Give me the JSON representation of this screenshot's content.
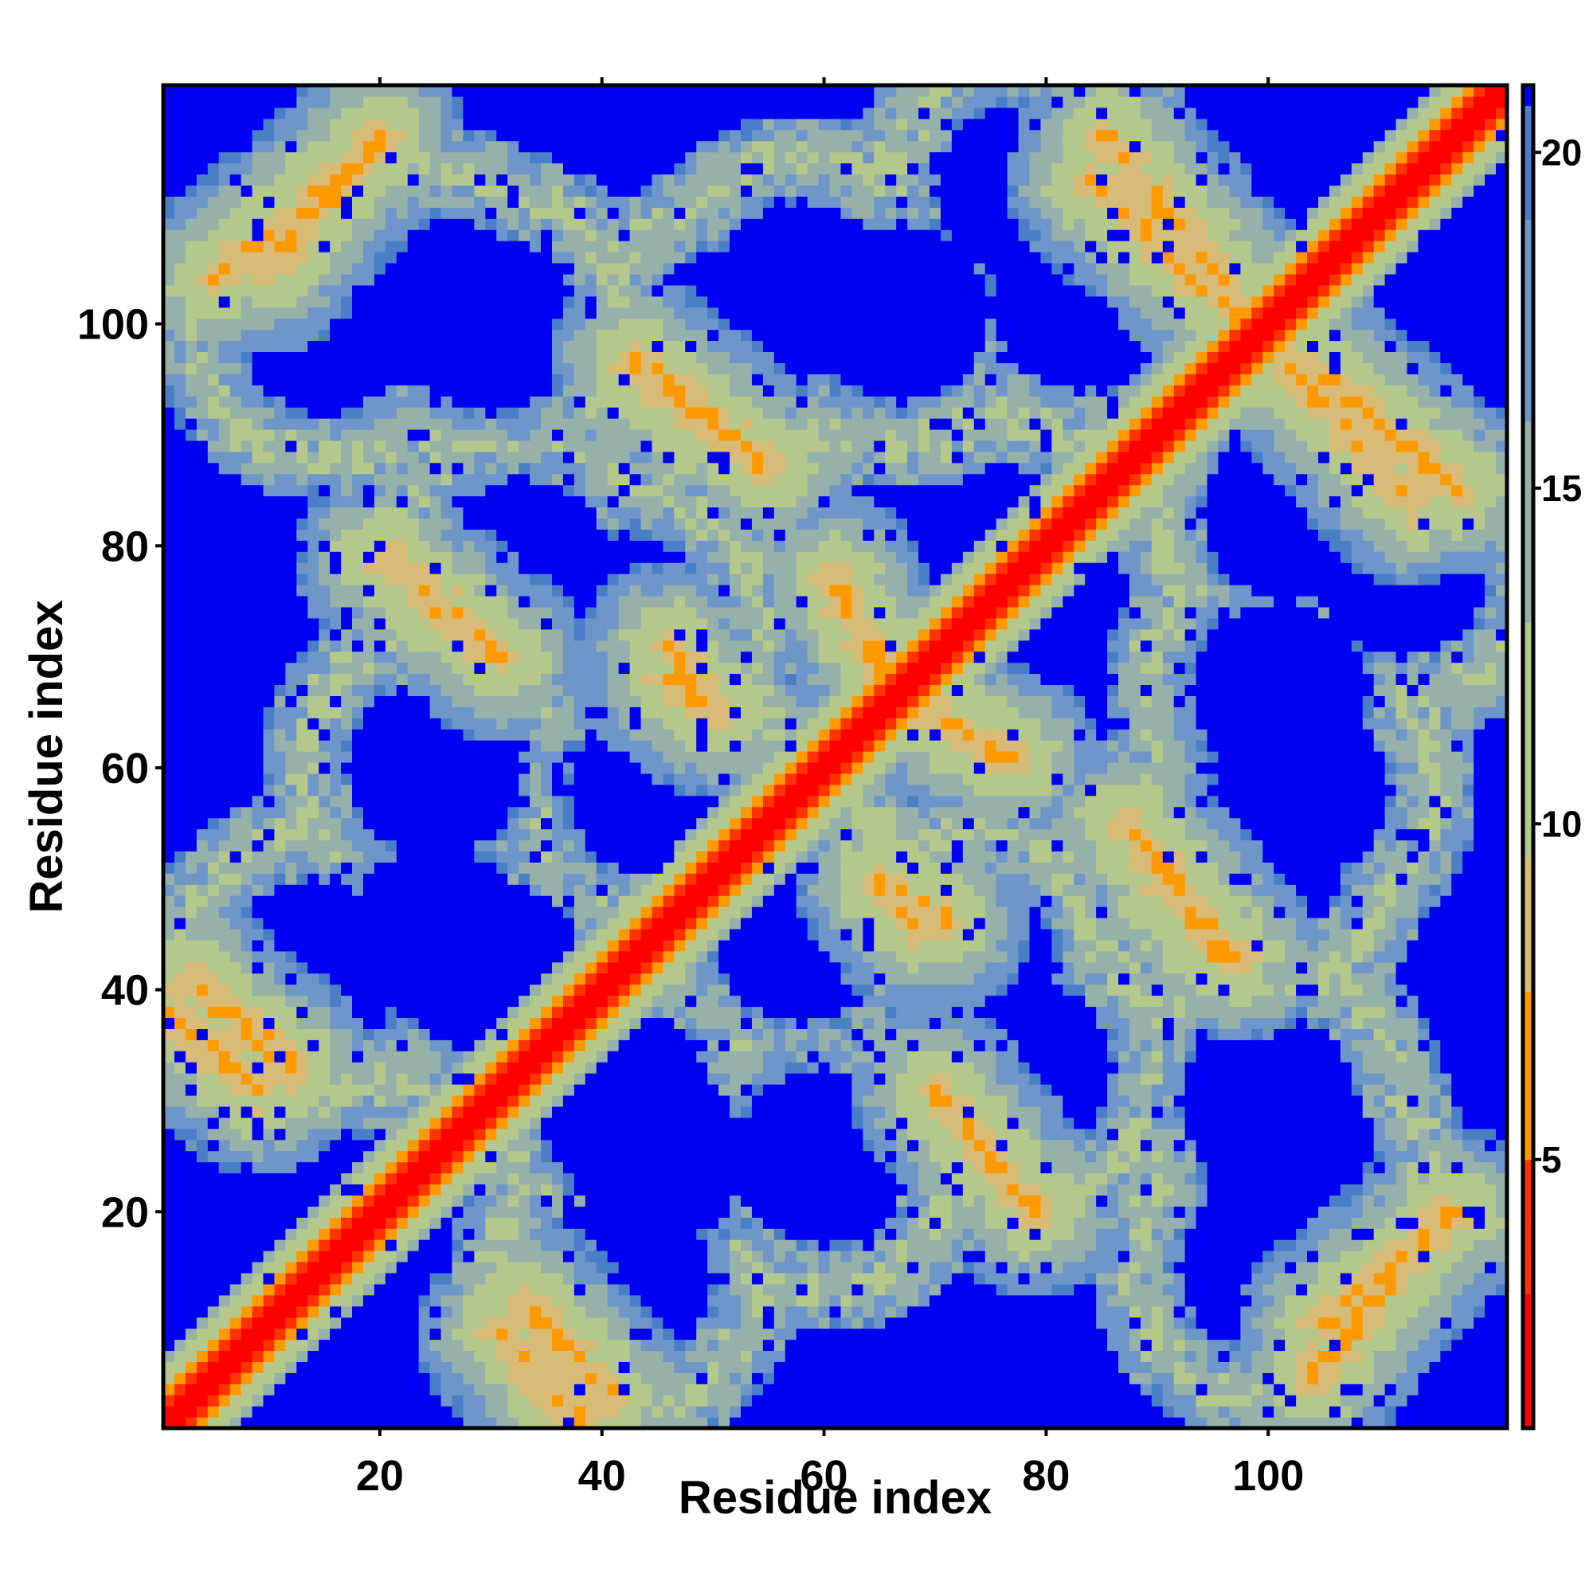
{
  "chart_data": {
    "type": "heatmap",
    "title": "",
    "xlabel": "Residue index",
    "ylabel": "Residue index",
    "n_residues": 121,
    "xlim": [
      1,
      121
    ],
    "ylim": [
      1,
      121
    ],
    "x_ticks": [
      20,
      40,
      60,
      80,
      100
    ],
    "y_ticks": [
      20,
      40,
      60,
      80,
      100
    ],
    "colorbar": {
      "ticks": [
        5,
        10,
        15,
        20
      ],
      "range": [
        1,
        21
      ],
      "cap_value": 21
    },
    "colors": {
      "background": "#ffffff",
      "cap": "#0000f5",
      "low": "#ff0000",
      "mid_orange": "#ff9900",
      "pale": "#b4c88c",
      "steel": "#6e96c8",
      "frame": "#000000"
    },
    "values_description_note": "",
    "diagonal_value": 1,
    "secondary_bands": [
      {
        "from": [
          3,
          41
        ],
        "to": [
          12,
          33
        ],
        "value": 6
      },
      {
        "from": [
          10,
          105
        ],
        "to": [
          20,
          117
        ],
        "value": 6
      },
      {
        "from": [
          20,
          79
        ],
        "to": [
          31,
          70
        ],
        "value": 6
      },
      {
        "from": [
          31,
          9
        ],
        "to": [
          38,
          1
        ],
        "value": 6
      },
      {
        "from": [
          43,
          97
        ],
        "to": [
          55,
          87
        ],
        "value": 6
      },
      {
        "from": [
          46,
          68
        ],
        "to": [
          50,
          65
        ],
        "value": 6
      },
      {
        "from": [
          61,
          77
        ],
        "to": [
          66,
          67
        ],
        "value": 6
      },
      {
        "from": [
          66,
          49
        ],
        "to": [
          71,
          46
        ],
        "value": 6
      },
      {
        "from": [
          67,
          67
        ],
        "to": [
          76,
          61
        ],
        "value": 6
      },
      {
        "from": [
          70,
          31
        ],
        "to": [
          79,
          20
        ],
        "value": 6
      },
      {
        "from": [
          85,
          117
        ],
        "to": [
          96,
          104
        ],
        "value": 6
      },
      {
        "from": [
          87,
          55
        ],
        "to": [
          96,
          43
        ],
        "value": 6
      },
      {
        "from": [
          101,
          97
        ],
        "to": [
          113,
          84
        ],
        "value": 6
      },
      {
        "from": [
          104,
          5
        ],
        "to": [
          116,
          20
        ],
        "value": 6
      }
    ],
    "blue_pockets": [
      [
        15,
        100
      ],
      [
        30,
        100
      ],
      [
        14,
        42
      ],
      [
        30,
        42
      ],
      [
        45,
        25
      ],
      [
        73,
        42
      ],
      [
        52,
        99
      ],
      [
        67,
        101
      ],
      [
        83,
        102
      ],
      [
        112,
        78
      ],
      [
        103,
        58
      ],
      [
        33,
        78
      ],
      [
        60,
        25
      ],
      [
        102,
        25
      ],
      [
        45,
        58
      ]
    ]
  }
}
